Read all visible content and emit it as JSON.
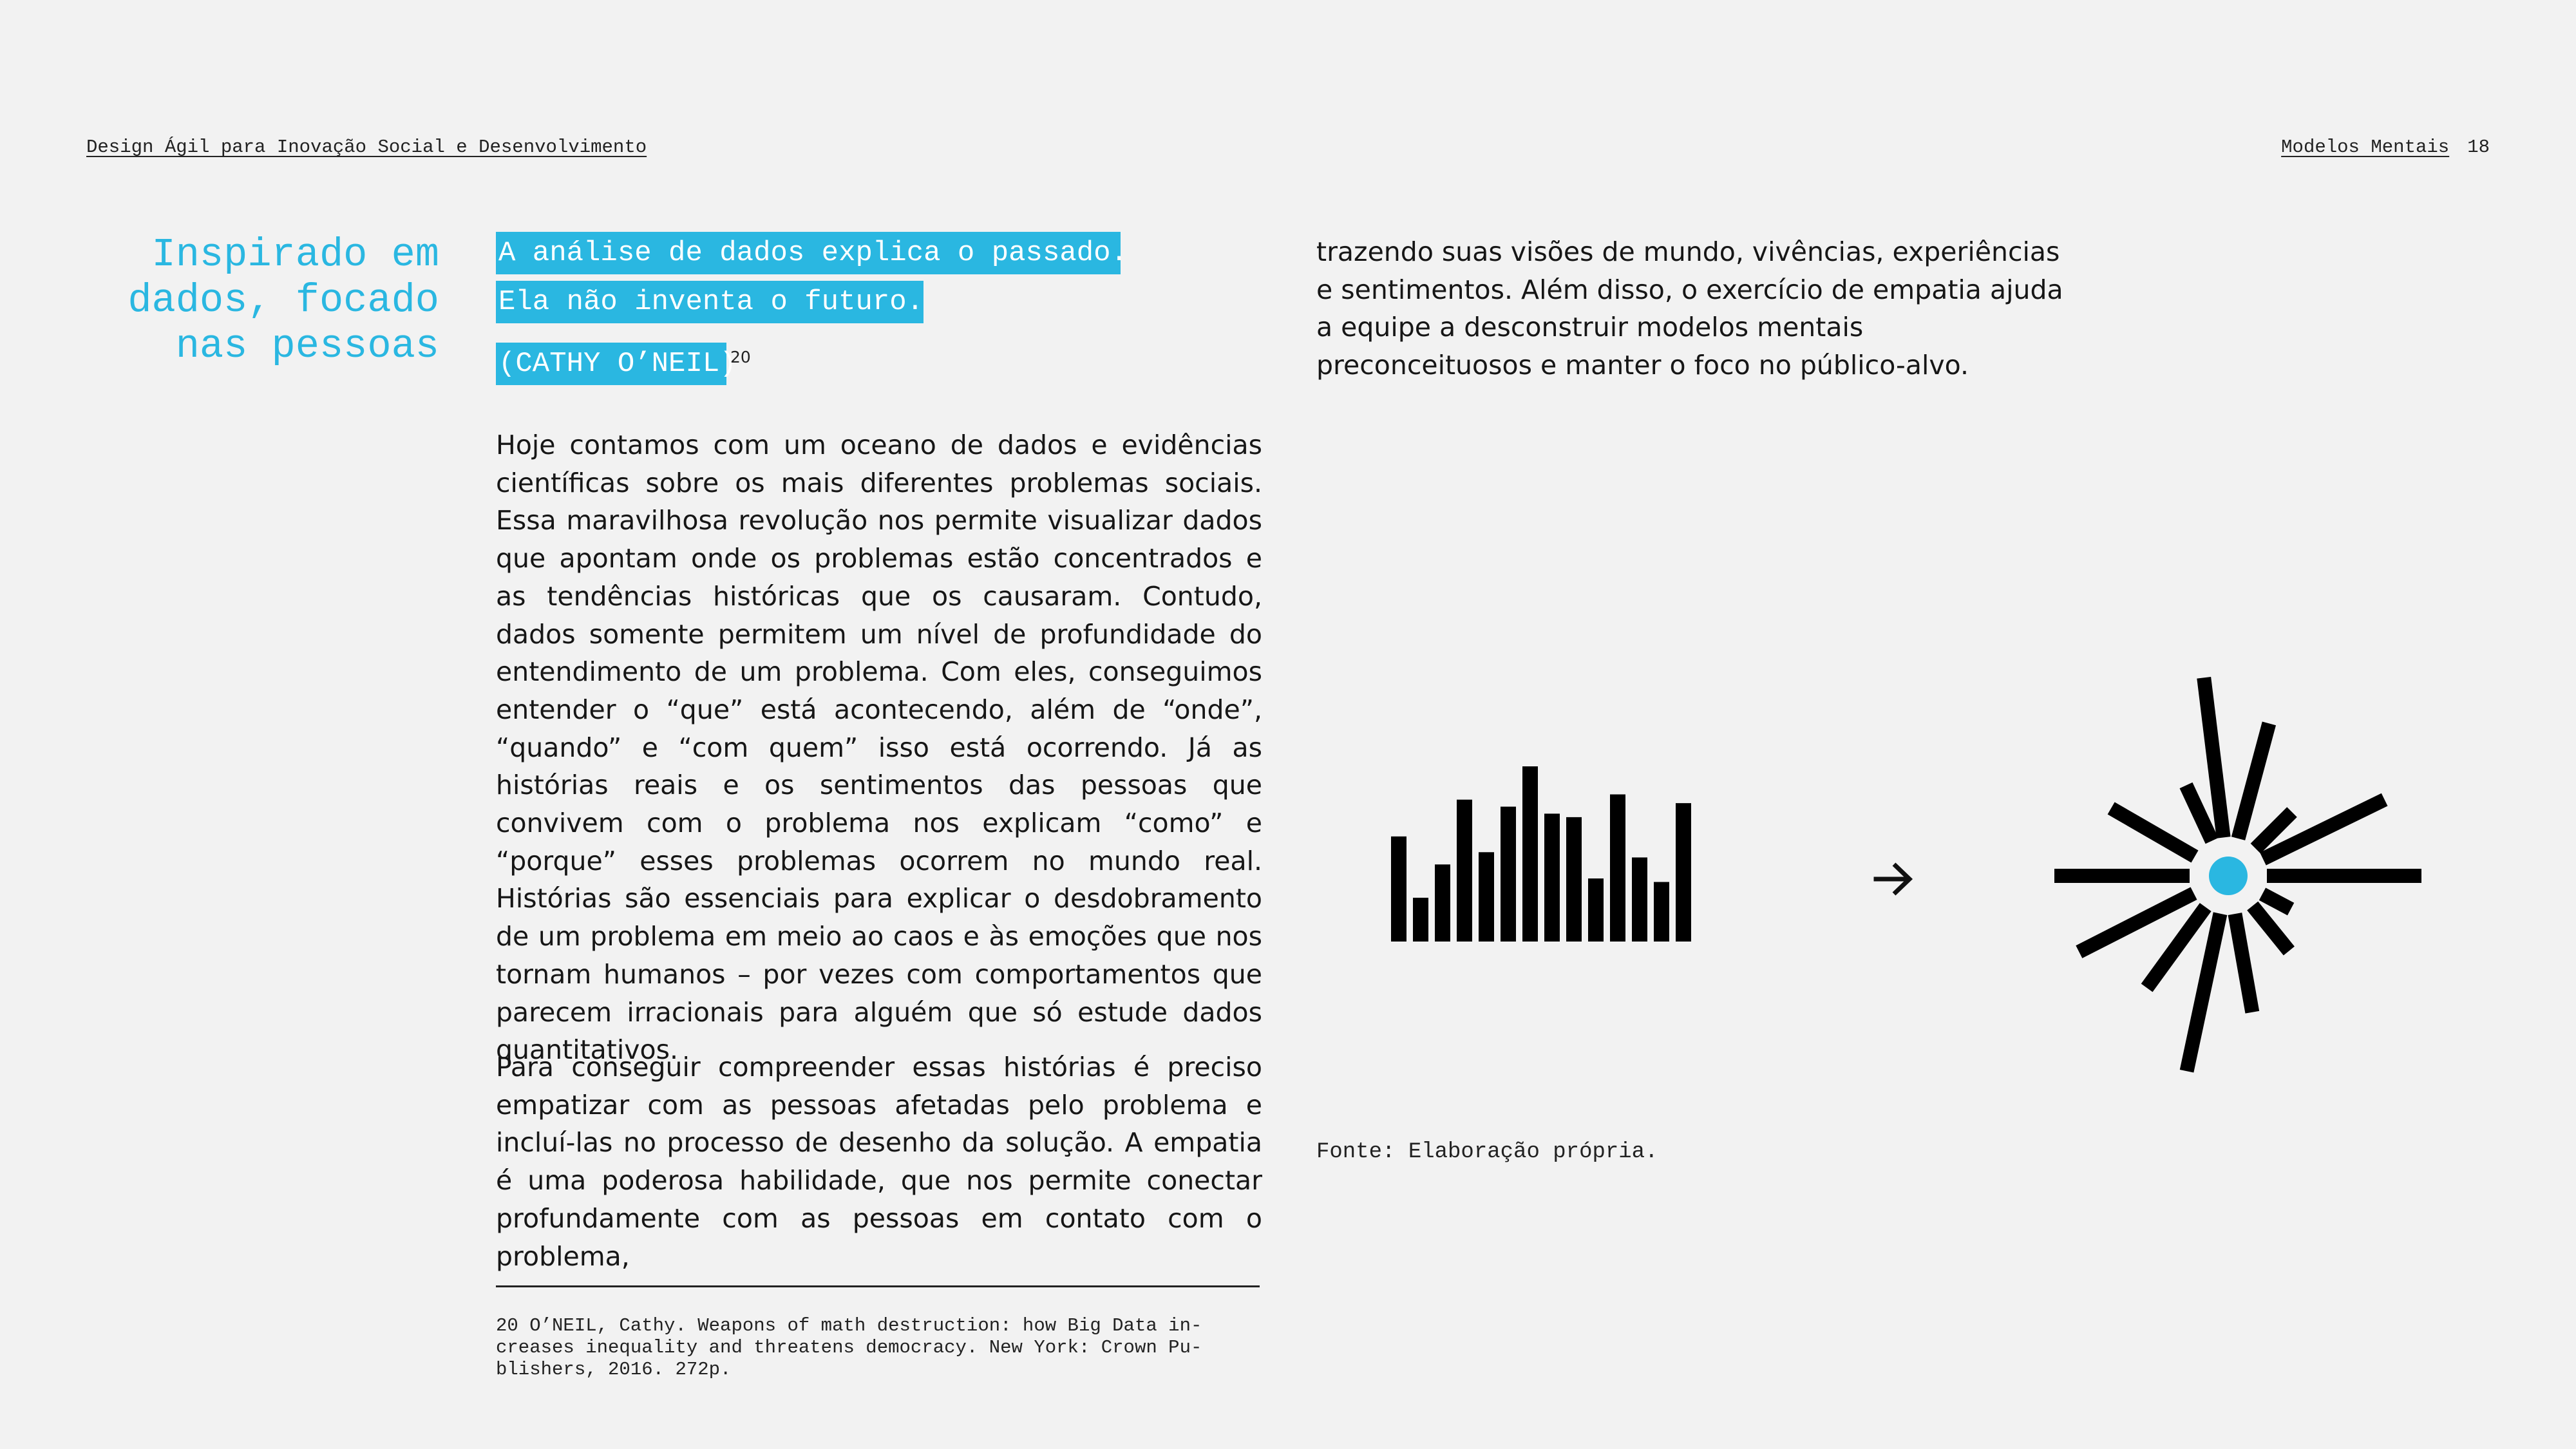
{
  "header": {
    "left": "Design Ágil para Inovação Social e Desenvolvimento",
    "section": "Modelos Mentais",
    "page_number": "18"
  },
  "side_title": {
    "lines": [
      "Inspirado em",
      "dados, focado",
      "nas pessoas"
    ]
  },
  "quote": {
    "line1": "A análise de dados explica o passado.",
    "line2": "Ela não inventa o futuro.",
    "author": "(CATHY O’NEIL)",
    "footnote_ref": "20"
  },
  "body": {
    "para1": "Hoje contamos com um oceano de dados e evidências científicas sobre os mais diferentes problemas sociais. Essa maravilhosa revolução nos permite visualizar dados que apontam onde os problemas estão concentrados e as tendências históricas que os causaram. Contudo, dados somente permitem um nível de profundidade do enten­dimento de um problema. Com eles, conseguimos enten­der o “que” está acontecendo, além de “onde”, “quando” e “com quem” isso está ocorrendo. Já as histórias reais e os sentimentos das pessoas que convivem com o problema nos explicam “como” e “porque” esses problemas ocorrem no mundo real. Histórias são essenciais para explicar o desdobramento de um problema em meio ao caos e às emoções que nos tornam humanos – por vezes com com­portamentos que parecem irracionais para alguém que só estude dados quantitativos.",
    "para2": "Para conseguir compreender essas histórias é preciso em­patizar com as pessoas afetadas pelo problema e incluí­-las no processo de desenho da solução. A empatia é uma poderosa habilidade, que nos permite conectar profun­damente com as pessoas em contato com o problema,",
    "para3": "trazendo suas visões de mundo, vivências, experiências e sentimentos. Além disso, o exercício de empatia ajuda a equipe a desconstruir modelos mentais preconceituosos e manter o foco no público-alvo."
  },
  "footnote": {
    "text": "20  O’NEIL, Cathy. Weapons of math destruction: how Big Data in-\ncreases inequality and threatens democracy. New York: Crown Pu-\nblishers, 2016. 272p."
  },
  "figure": {
    "source": "Fonte: Elaboração própria.",
    "bars": [
      0.6,
      0.25,
      0.44,
      0.81,
      0.51,
      0.77,
      1.0,
      0.73,
      0.71,
      0.36,
      0.84,
      0.48,
      0.34,
      0.79
    ],
    "arrow_icon": "right-arrow-icon",
    "burst_icon": "sunburst-icon",
    "colors": {
      "accent": "#2ab7e1",
      "ink": "#000000"
    }
  },
  "colors": {
    "accent": "#2ab7e1",
    "background": "#f2f2f2",
    "text": "#161616"
  }
}
